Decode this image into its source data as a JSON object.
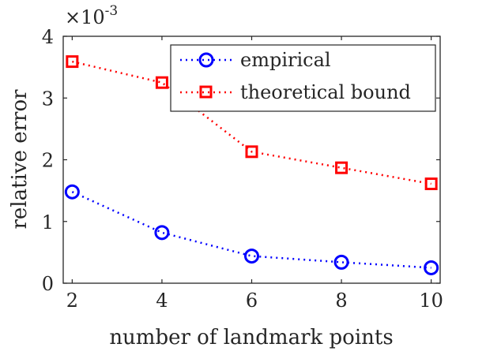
{
  "chart_data": {
    "type": "line",
    "xlabel": "number of landmark points",
    "ylabel": "relative error",
    "y_multiplier_label": "×10",
    "y_multiplier_exponent": "-3",
    "xlim": [
      1.8,
      10.2
    ],
    "ylim": [
      0,
      4
    ],
    "x_ticks": [
      2,
      4,
      6,
      8,
      10
    ],
    "y_ticks": [
      0,
      1,
      2,
      3,
      4
    ],
    "y_scale_factor": 0.001,
    "legend_position": "top-right",
    "grid": false,
    "x": [
      2,
      4,
      6,
      8,
      10
    ],
    "series": [
      {
        "name": "empirical",
        "values": [
          0.00148,
          0.00082,
          0.00044,
          0.00034,
          0.00025
        ],
        "color": "#0000ff",
        "marker": "circle",
        "line_style": "dotted"
      },
      {
        "name": "theoretical bound",
        "values": [
          0.00359,
          0.00325,
          0.00213,
          0.00187,
          0.00161
        ],
        "color": "#ff0000",
        "marker": "square",
        "line_style": "dotted"
      }
    ]
  }
}
